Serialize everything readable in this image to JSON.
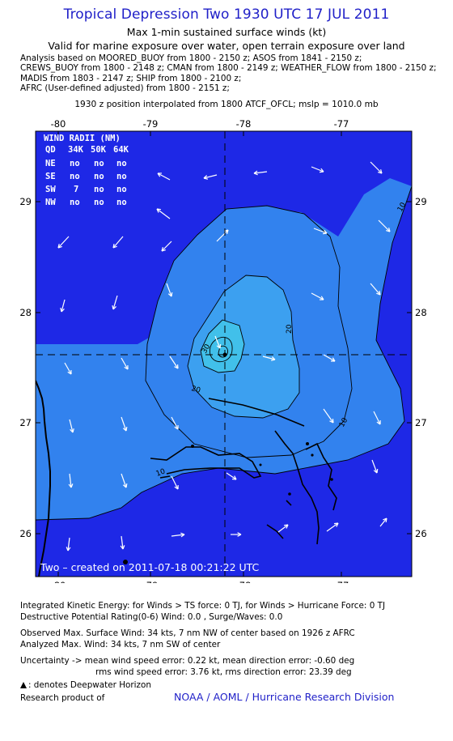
{
  "header": {
    "title": "Tropical Depression Two 1930 UTC 17 JUL 2011",
    "subtitle1": "Max 1-min sustained surface winds (kt)",
    "subtitle2": "Valid for marine exposure over water, open terrain exposure over land",
    "analysis_lines": [
      "Analysis based on MOORED_BUOY from 1800 - 2150 z; ASOS from 1841 - 2150 z;",
      "CREWS_BUOY from 1800 - 2148 z; CMAN from 1800 - 2149 z; WEATHER_FLOW from 1800 - 2150 z;",
      "MADIS from 1803 - 2147 z; SHIP from 1800 - 2100 z;",
      "AFRC (User-defined adjusted) from 1800 - 2151 z;"
    ],
    "position_note": "1930 z position interpolated from 1800 ATCF_OFCL; mslp = 1010.0 mb"
  },
  "map": {
    "lon_ticks": [
      "-80",
      "-79",
      "-78",
      "-77"
    ],
    "lat_ticks": [
      "29",
      "28",
      "27",
      "26"
    ],
    "colors": {
      "ocean": "#1e28e6",
      "c10": "#3282ee",
      "c20": "#3ca0f0",
      "c30": "#41c0ea",
      "land": "#000000"
    },
    "wind_radii": {
      "title": "WIND RADII (NM)",
      "header": [
        "QD",
        "34K",
        "50K",
        "64K"
      ],
      "rows": [
        [
          "NE",
          "no",
          "no",
          "no"
        ],
        [
          "SE",
          "no",
          "no",
          "no"
        ],
        [
          "SW",
          "7",
          "no",
          "no"
        ],
        [
          "NW",
          "no",
          "no",
          "no"
        ]
      ]
    },
    "contour_labels": [
      "10",
      "10",
      "10",
      "20",
      "20",
      "30"
    ],
    "created": "Two – created on 2011-07-18 00:21:22 UTC"
  },
  "footer": {
    "ike": "Integrated Kinetic Energy:  for Winds > TS force: 0 TJ,  for Winds > Hurricane Force: 0 TJ",
    "dpr": "Destructive Potential Rating(0-6)   Wind: 0.0 , Surge/Waves: 0.0",
    "observed": "Observed Max. Surface Wind: 34 kts, 7 nm NW of center based on 1926 z AFRC",
    "analyzed": "Analyzed Max. Wind: 34 kts, 7 nm SW of center",
    "uncertainty1": "Uncertainty -> mean wind speed error: 0.22 kt,   mean direction error:  -0.60 deg",
    "uncertainty2": "rms wind speed error: 3.76 kt,   rms direction error: 23.39 deg",
    "deepwater": ": denotes Deepwater Horizon",
    "research": "Research product of",
    "noaa": "NOAA / AOML / Hurricane Research Division"
  }
}
